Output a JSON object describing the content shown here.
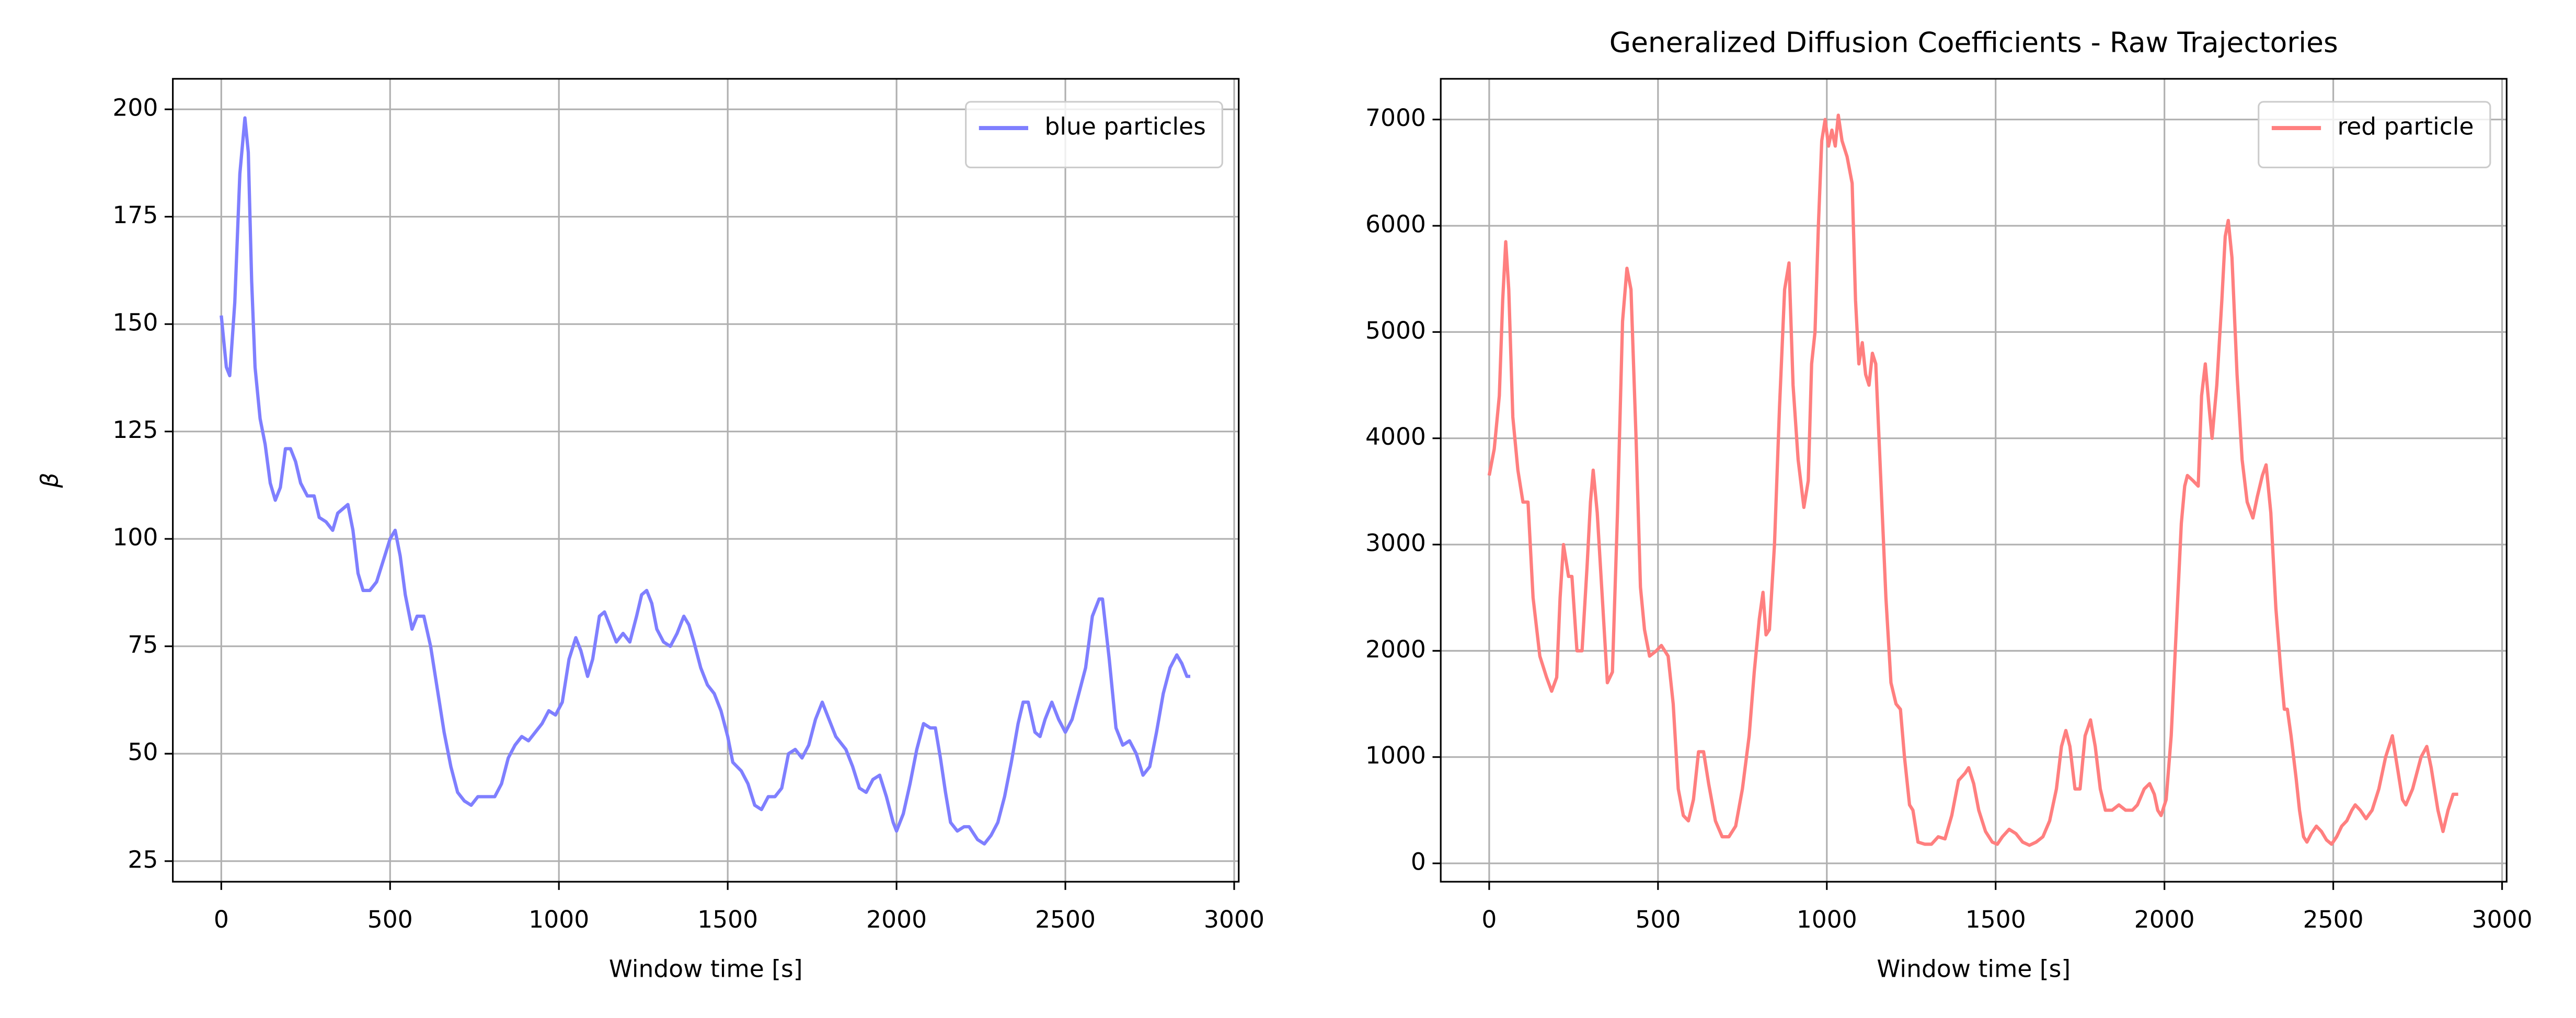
{
  "chart_data": [
    {
      "type": "line",
      "xlabel": "Window time [s]",
      "ylabel": "β",
      "x": [
        0,
        15,
        25,
        40,
        55,
        70,
        80,
        90,
        100,
        115,
        130,
        145,
        160,
        175,
        190,
        205,
        220,
        235,
        255,
        275,
        290,
        310,
        330,
        345,
        360,
        375,
        390,
        405,
        420,
        440,
        460,
        480,
        500,
        515,
        530,
        545,
        565,
        580,
        600,
        620,
        640,
        660,
        680,
        700,
        720,
        740,
        760,
        790,
        810,
        830,
        850,
        870,
        890,
        910,
        930,
        950,
        970,
        990,
        1010,
        1030,
        1050,
        1065,
        1085,
        1100,
        1120,
        1135,
        1155,
        1170,
        1190,
        1210,
        1230,
        1245,
        1260,
        1275,
        1290,
        1310,
        1330,
        1350,
        1370,
        1385,
        1400,
        1420,
        1440,
        1460,
        1480,
        1500,
        1515,
        1540,
        1560,
        1580,
        1600,
        1620,
        1640,
        1660,
        1680,
        1700,
        1720,
        1740,
        1760,
        1780,
        1800,
        1820,
        1850,
        1870,
        1890,
        1910,
        1930,
        1950,
        1970,
        1990,
        2000,
        2020,
        2040,
        2060,
        2080,
        2100,
        2115,
        2130,
        2145,
        2160,
        2180,
        2200,
        2215,
        2240,
        2260,
        2280,
        2300,
        2320,
        2340,
        2360,
        2375,
        2390,
        2410,
        2425,
        2440,
        2460,
        2480,
        2500,
        2520,
        2540,
        2560,
        2580,
        2600,
        2610,
        2630,
        2650,
        2670,
        2690,
        2710,
        2730,
        2750,
        2770,
        2790,
        2810,
        2830,
        2845,
        2860,
        2870
      ],
      "series": [
        {
          "name": "blue particles",
          "color": "#7f7fff",
          "values": [
            152,
            140,
            138,
            155,
            185,
            198,
            190,
            160,
            140,
            128,
            122,
            113,
            109,
            112,
            121,
            121,
            118,
            113,
            110,
            110,
            105,
            104,
            102,
            106,
            107,
            108,
            102,
            92,
            88,
            88,
            90,
            95,
            100,
            102,
            96,
            87,
            79,
            82,
            82,
            75,
            65,
            55,
            47,
            41,
            39,
            38,
            40,
            40,
            40,
            43,
            49,
            52,
            54,
            53,
            55,
            57,
            60,
            59,
            62,
            72,
            77,
            74,
            68,
            72,
            82,
            83,
            79,
            76,
            78,
            76,
            82,
            87,
            88,
            85,
            79,
            76,
            75,
            78,
            82,
            80,
            76,
            70,
            66,
            64,
            60,
            54,
            48,
            46,
            43,
            38,
            37,
            40,
            40,
            42,
            50,
            51,
            49,
            52,
            58,
            62,
            58,
            54,
            51,
            47,
            42,
            41,
            44,
            45,
            40,
            34,
            32,
            36,
            43,
            51,
            57,
            56,
            56,
            49,
            41,
            34,
            32,
            33,
            33,
            30,
            29,
            31,
            34,
            40,
            48,
            57,
            62,
            62,
            55,
            54,
            58,
            62,
            58,
            55,
            58,
            64,
            70,
            82,
            86,
            86,
            72,
            56,
            52,
            53,
            50,
            45,
            47,
            55,
            64,
            70,
            73,
            71,
            68,
            68
          ]
        }
      ],
      "xlim": [
        -143.5,
        3013.5
      ],
      "ylim": [
        20.2,
        207.1
      ],
      "xticks": [
        0,
        500,
        1000,
        1500,
        2000,
        2500,
        3000
      ],
      "yticks": [
        25,
        50,
        75,
        100,
        125,
        150,
        175,
        200
      ],
      "grid": true,
      "legend": "upper right"
    },
    {
      "type": "line",
      "title": "Generalized Diffusion Coefficients - Raw Trajectories",
      "xlabel": "Window time [s]",
      "x": [
        0,
        15,
        30,
        40,
        49,
        58,
        70,
        85,
        100,
        115,
        130,
        150,
        170,
        185,
        200,
        210,
        220,
        235,
        245,
        260,
        275,
        290,
        300,
        308,
        320,
        335,
        350,
        365,
        380,
        395,
        408,
        420,
        435,
        448,
        460,
        475,
        495,
        510,
        530,
        545,
        560,
        575,
        590,
        605,
        620,
        635,
        650,
        670,
        690,
        710,
        730,
        750,
        770,
        785,
        800,
        811,
        820,
        830,
        845,
        860,
        875,
        888,
        900,
        915,
        932,
        945,
        955,
        965,
        975,
        985,
        995,
        1005,
        1015,
        1025,
        1034,
        1045,
        1060,
        1075,
        1085,
        1095,
        1105,
        1115,
        1125,
        1135,
        1145,
        1160,
        1175,
        1190,
        1205,
        1218,
        1230,
        1245,
        1255,
        1270,
        1290,
        1310,
        1330,
        1350,
        1370,
        1390,
        1410,
        1420,
        1435,
        1450,
        1470,
        1490,
        1505,
        1520,
        1540,
        1560,
        1580,
        1600,
        1620,
        1640,
        1660,
        1680,
        1695,
        1708,
        1720,
        1735,
        1750,
        1765,
        1781,
        1795,
        1810,
        1825,
        1845,
        1865,
        1885,
        1905,
        1920,
        1940,
        1956,
        1970,
        1980,
        1990,
        2005,
        2020,
        2035,
        2050,
        2060,
        2068,
        2085,
        2100,
        2110,
        2121,
        2132,
        2141,
        2155,
        2170,
        2180,
        2189,
        2200,
        2215,
        2230,
        2245,
        2262,
        2275,
        2290,
        2301,
        2315,
        2330,
        2345,
        2355,
        2364,
        2375,
        2390,
        2400,
        2412,
        2422,
        2435,
        2450,
        2465,
        2480,
        2495,
        2510,
        2525,
        2540,
        2555,
        2565,
        2580,
        2597,
        2615,
        2635,
        2655,
        2675,
        2690,
        2705,
        2715,
        2735,
        2760,
        2777,
        2790,
        2810,
        2825,
        2840,
        2855,
        2870
      ],
      "series": [
        {
          "name": "red particle",
          "color": "#ff7f7f",
          "values": [
            3650,
            3900,
            4400,
            5300,
            5850,
            5400,
            4200,
            3700,
            3400,
            3400,
            2500,
            1950,
            1750,
            1620,
            1750,
            2500,
            3000,
            2700,
            2700,
            2000,
            2000,
            2800,
            3400,
            3700,
            3300,
            2500,
            1700,
            1800,
            3300,
            5100,
            5600,
            5400,
            4000,
            2600,
            2200,
            1950,
            2000,
            2050,
            1950,
            1500,
            700,
            450,
            400,
            600,
            1050,
            1050,
            750,
            400,
            250,
            250,
            350,
            700,
            1200,
            1800,
            2300,
            2550,
            2150,
            2200,
            3000,
            4300,
            5400,
            5650,
            4500,
            3800,
            3350,
            3600,
            4700,
            5000,
            6000,
            6800,
            7000,
            6750,
            6900,
            6750,
            7040,
            6800,
            6650,
            6400,
            5300,
            4700,
            4900,
            4600,
            4500,
            4800,
            4700,
            3600,
            2500,
            1700,
            1500,
            1450,
            1000,
            550,
            500,
            200,
            180,
            180,
            250,
            230,
            450,
            780,
            850,
            900,
            750,
            500,
            300,
            200,
            180,
            250,
            320,
            280,
            200,
            170,
            200,
            250,
            400,
            700,
            1100,
            1250,
            1100,
            700,
            700,
            1200,
            1350,
            1100,
            700,
            500,
            500,
            550,
            500,
            500,
            550,
            700,
            750,
            650,
            500,
            450,
            600,
            1200,
            2200,
            3200,
            3550,
            3650,
            3600,
            3550,
            4400,
            4700,
            4300,
            4000,
            4500,
            5300,
            5900,
            6050,
            5700,
            4600,
            3800,
            3400,
            3250,
            3450,
            3650,
            3750,
            3300,
            2400,
            1800,
            1450,
            1450,
            1200,
            800,
            500,
            250,
            200,
            280,
            350,
            300,
            220,
            180,
            250,
            350,
            400,
            500,
            550,
            500,
            420,
            500,
            700,
            1000,
            1200,
            900,
            600,
            550,
            700,
            1000,
            1100,
            900,
            500,
            300,
            500,
            650,
            650
          ]
        }
      ],
      "xlim": [
        -143.5,
        3013.5
      ],
      "ylim": [
        -173,
        7383
      ],
      "xticks": [
        0,
        500,
        1000,
        1500,
        2000,
        2500,
        3000
      ],
      "yticks": [
        0,
        1000,
        2000,
        3000,
        4000,
        5000,
        6000,
        7000
      ],
      "grid": true,
      "legend": "upper right"
    }
  ]
}
